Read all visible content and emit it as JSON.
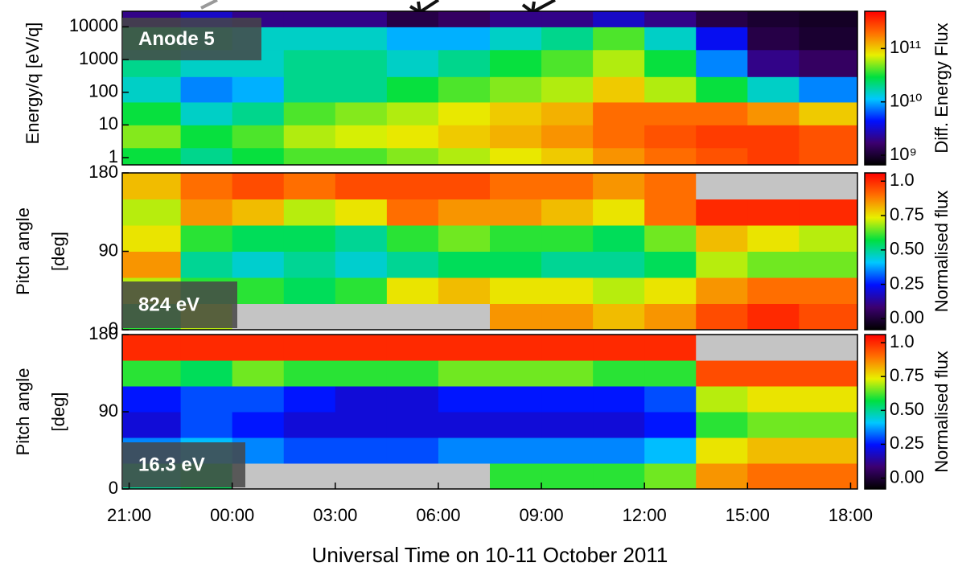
{
  "chart_data": [
    {
      "type": "heatmap",
      "label": "Anode 5",
      "ylabel": "Energy/q [eV/q]",
      "ylog": true,
      "xlim": [
        -0.2,
        21.2
      ],
      "bins": [
        -0.2,
        1.5,
        3,
        4.5,
        6,
        7.5,
        9,
        10.5,
        12,
        13.5,
        15,
        16.5,
        18,
        19.5,
        21.2
      ],
      "ylim": [
        0.6,
        30000
      ],
      "yticks": [
        1,
        10,
        100,
        1000,
        10000
      ],
      "ybins": [
        0.6,
        2,
        10,
        50,
        300,
        2000,
        10000,
        30000
      ],
      "values": [
        [
          30000000000.0,
          20000000000.0,
          30000000000.0,
          40000000000.0,
          40000000000.0,
          50000000000.0,
          60000000000.0,
          80000000000.0,
          100000000000.0,
          150000000000.0,
          200000000000.0,
          250000000000.0,
          300000000000.0,
          250000000000.0
        ],
        [
          50000000000.0,
          30000000000.0,
          40000000000.0,
          60000000000.0,
          70000000000.0,
          80000000000.0,
          100000000000.0,
          120000000000.0,
          150000000000.0,
          200000000000.0,
          250000000000.0,
          300000000000.0,
          300000000000.0,
          250000000000.0
        ],
        [
          30000000000.0,
          15000000000.0,
          20000000000.0,
          40000000000.0,
          50000000000.0,
          60000000000.0,
          80000000000.0,
          100000000000.0,
          120000000000.0,
          200000000000.0,
          200000000000.0,
          200000000000.0,
          150000000000.0,
          100000000000.0
        ],
        [
          15000000000.0,
          8000000000.0,
          10000000000.0,
          20000000000.0,
          20000000000.0,
          30000000000.0,
          40000000000.0,
          50000000000.0,
          60000000000.0,
          100000000000.0,
          60000000000.0,
          30000000000.0,
          15000000000.0,
          8000000000.0
        ],
        [
          20000000000.0,
          15000000000.0,
          15000000000.0,
          20000000000.0,
          20000000000.0,
          15000000000.0,
          20000000000.0,
          30000000000.0,
          40000000000.0,
          60000000000.0,
          30000000000.0,
          8000000000.0,
          2000000000.0,
          1500000000.0
        ],
        [
          25000000000.0,
          20000000000.0,
          15000000000.0,
          15000000000.0,
          15000000000.0,
          10000000000.0,
          10000000000.0,
          15000000000.0,
          20000000000.0,
          40000000000.0,
          15000000000.0,
          4000000000.0,
          1200000000.0,
          1000000000.0
        ],
        [
          2000000000.0,
          3000000000.0,
          2000000000.0,
          2000000000.0,
          2000000000.0,
          1200000000.0,
          1500000000.0,
          2000000000.0,
          2000000000.0,
          3000000000.0,
          2000000000.0,
          1200000000.0,
          1000000000.0,
          900000000.0
        ]
      ],
      "colorbar": {
        "label": "Diff. Energy Flux",
        "log": true,
        "lim": [
          660000000.0,
          500000000000.0
        ],
        "ticks": [
          {
            "value": 1000000000.0,
            "label": "10⁹"
          },
          {
            "value": 10000000000.0,
            "label": "10¹⁰"
          },
          {
            "value": 100000000000.0,
            "label": "10¹¹"
          }
        ]
      },
      "colormap": [
        "#000000",
        "#3c0070",
        "#0010ff",
        "#00c8ff",
        "#00e040",
        "#e8f000",
        "#ff7000",
        "#ff0000"
      ],
      "missing_color": "#c4c4c4"
    },
    {
      "type": "heatmap",
      "label": "824 eV",
      "ylabel": [
        "Pitch angle",
        "[deg]"
      ],
      "ylog": false,
      "xlim": [
        -0.2,
        21.2
      ],
      "bins": [
        -0.2,
        1.5,
        3,
        4.5,
        6,
        7.5,
        9,
        10.5,
        12,
        13.5,
        15,
        16.5,
        18,
        19.5,
        21.2
      ],
      "ylim": [
        0,
        180
      ],
      "yticks": [
        0,
        90,
        180
      ],
      "ybins": [
        0,
        30,
        60,
        90,
        120,
        150,
        180
      ],
      "values": [
        [
          0.6,
          0.7,
          null,
          null,
          null,
          null,
          null,
          0.85,
          0.85,
          0.8,
          0.85,
          0.95,
          1.0,
          0.95
        ],
        [
          0.7,
          0.6,
          0.6,
          0.55,
          0.6,
          0.75,
          0.8,
          0.75,
          0.75,
          0.7,
          0.75,
          0.85,
          0.9,
          0.9
        ],
        [
          0.85,
          0.5,
          0.45,
          0.5,
          0.45,
          0.5,
          0.55,
          0.55,
          0.5,
          0.5,
          0.55,
          0.7,
          0.65,
          0.65
        ],
        [
          0.75,
          0.6,
          0.55,
          0.55,
          0.5,
          0.6,
          0.65,
          0.6,
          0.6,
          0.55,
          0.65,
          0.8,
          0.75,
          0.7
        ],
        [
          0.7,
          0.85,
          0.8,
          0.7,
          0.75,
          0.9,
          0.85,
          0.85,
          0.8,
          0.75,
          0.9,
          1.0,
          1.0,
          1.0
        ],
        [
          0.8,
          0.9,
          0.95,
          0.9,
          0.95,
          0.95,
          0.95,
          0.9,
          0.9,
          0.85,
          0.9,
          null,
          null,
          null
        ]
      ],
      "colorbar": {
        "label": "Normalised flux",
        "log": false,
        "lim": [
          -0.08,
          1.06
        ],
        "ticks": [
          {
            "value": 0,
            "label": "0.00"
          },
          0.25,
          {
            "value": 0.5,
            "label": "0.50"
          },
          0.75,
          {
            "value": 1,
            "label": "1.0"
          }
        ]
      },
      "colormap": [
        "#000000",
        "#3c0070",
        "#0010ff",
        "#00c8ff",
        "#00e040",
        "#e8f000",
        "#ff7000",
        "#ff0000"
      ],
      "missing_color": "#c4c4c4"
    },
    {
      "type": "heatmap",
      "label": "16.3 eV",
      "ylabel": [
        "Pitch angle",
        "[deg]"
      ],
      "ylog": false,
      "xlim": [
        -0.2,
        21.2
      ],
      "bins": [
        -0.2,
        1.5,
        3,
        4.5,
        6,
        7.5,
        9,
        10.5,
        12,
        13.5,
        15,
        16.5,
        18,
        19.5,
        21.2
      ],
      "xticks": [
        {
          "value": 0,
          "label": "21:00"
        },
        {
          "value": 3,
          "label": "00:00"
        },
        {
          "value": 6,
          "label": "03:00"
        },
        {
          "value": 9,
          "label": "06:00"
        },
        {
          "value": 12,
          "label": "09:00"
        },
        {
          "value": 15,
          "label": "12:00"
        },
        {
          "value": 18,
          "label": "15:00"
        },
        {
          "value": 21,
          "label": "18:00"
        }
      ],
      "xlabel": "Universal Time on 10-11 October 2011",
      "ylim": [
        0,
        180
      ],
      "yticks": [
        0,
        90,
        180
      ],
      "ybins": [
        0,
        30,
        60,
        90,
        120,
        150,
        180
      ],
      "values": [
        [
          0.5,
          0.55,
          null,
          null,
          null,
          null,
          null,
          0.6,
          0.6,
          0.6,
          0.65,
          0.85,
          0.9,
          0.9
        ],
        [
          0.35,
          0.4,
          0.35,
          0.3,
          0.3,
          0.3,
          0.35,
          0.35,
          0.35,
          0.35,
          0.4,
          0.75,
          0.8,
          0.8
        ],
        [
          0.2,
          0.3,
          0.25,
          0.2,
          0.2,
          0.2,
          0.2,
          0.2,
          0.2,
          0.2,
          0.25,
          0.6,
          0.65,
          0.65
        ],
        [
          0.25,
          0.3,
          0.3,
          0.25,
          0.2,
          0.2,
          0.25,
          0.25,
          0.25,
          0.25,
          0.3,
          0.7,
          0.75,
          0.75
        ],
        [
          0.6,
          0.55,
          0.65,
          0.6,
          0.6,
          0.6,
          0.65,
          0.65,
          0.65,
          0.6,
          0.6,
          0.95,
          0.95,
          0.95
        ],
        [
          1.0,
          1.0,
          1.0,
          1.0,
          1.0,
          1.0,
          1.0,
          1.0,
          1.0,
          1.0,
          1.0,
          null,
          null,
          null
        ]
      ],
      "colorbar": {
        "label": "Normalised flux",
        "log": false,
        "lim": [
          -0.08,
          1.06
        ],
        "ticks": [
          {
            "value": 0,
            "label": "0.00"
          },
          0.25,
          {
            "value": 0.5,
            "label": "0.50"
          },
          0.75,
          {
            "value": 1,
            "label": "1.0"
          }
        ]
      },
      "colormap": [
        "#000000",
        "#3c0070",
        "#0010ff",
        "#00c8ff",
        "#00e040",
        "#e8f000",
        "#ff7000",
        "#ff0000"
      ],
      "missing_color": "#c4c4c4"
    }
  ]
}
